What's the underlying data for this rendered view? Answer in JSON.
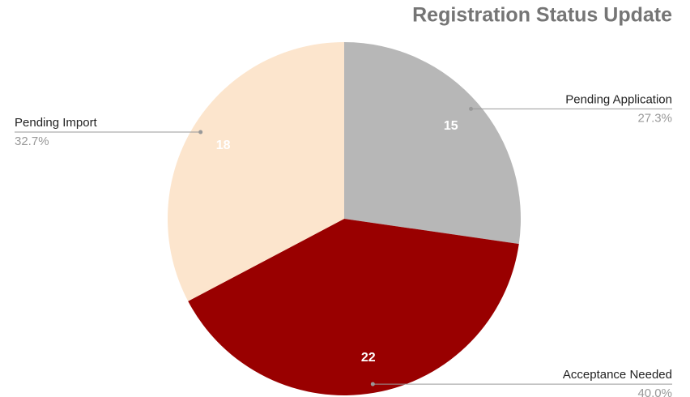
{
  "chart_data": {
    "type": "pie",
    "title": "Registration Status Update",
    "categories": [
      "Pending Application",
      "Acceptance Needed",
      "Pending Import"
    ],
    "values": [
      15,
      22,
      18
    ],
    "percent_labels": [
      "27.3%",
      "40.0%",
      "32.7%"
    ],
    "colors": [
      "#b7b7b7",
      "#990000",
      "#fce5cd"
    ]
  }
}
